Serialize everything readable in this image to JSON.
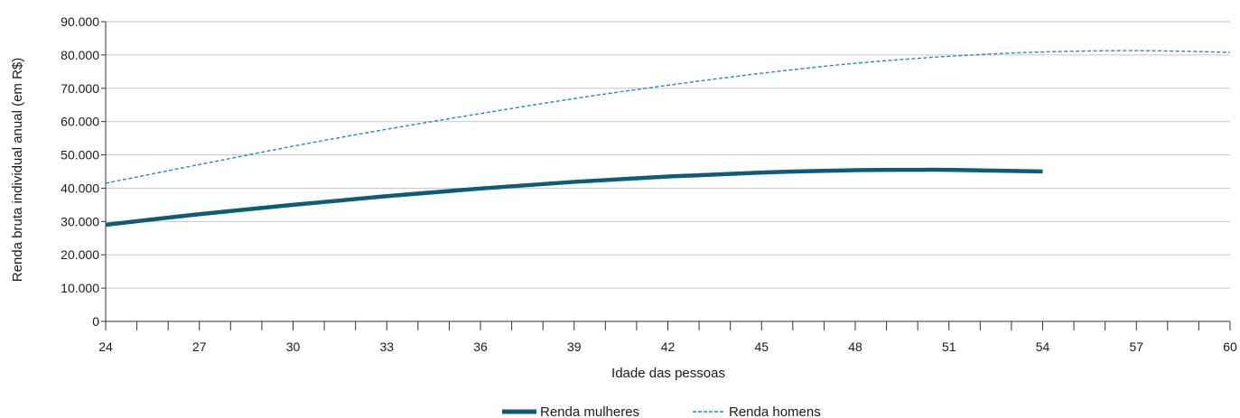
{
  "chart_data": {
    "type": "line",
    "title": "",
    "xlabel": "Idade das pessoas",
    "ylabel": "Renda bruta individual anual (em R$)",
    "xlim": [
      24,
      60
    ],
    "ylim": [
      0,
      90000
    ],
    "x_ticks": [
      "24",
      "27",
      "30",
      "33",
      "36",
      "39",
      "42",
      "45",
      "48",
      "51",
      "54",
      "57",
      "60"
    ],
    "y_ticks": [
      "0",
      "10.000",
      "20.000",
      "30.000",
      "40.000",
      "50.000",
      "60.000",
      "70.000",
      "80.000",
      "90.000"
    ],
    "grid": "horizontal",
    "legend_position": "bottom-center",
    "series": [
      {
        "name": "Renda mulheres",
        "color": "#0e5c7a",
        "style": "solid",
        "x": [
          24,
          27,
          30,
          33,
          36,
          39,
          42,
          45,
          48,
          50,
          51,
          54
        ],
        "y": [
          29000,
          32200,
          35000,
          37600,
          39900,
          41900,
          43500,
          44700,
          45400,
          45500,
          45500,
          45000
        ]
      },
      {
        "name": "Renda homens",
        "color": "#1d8fb0",
        "style": "dashed",
        "x": [
          24,
          27,
          30,
          33,
          36,
          39,
          42,
          45,
          48,
          51,
          54,
          57,
          60
        ],
        "y": [
          41500,
          47100,
          52600,
          57700,
          62400,
          66900,
          70900,
          74500,
          77500,
          79600,
          80900,
          81300,
          80800
        ]
      }
    ]
  }
}
